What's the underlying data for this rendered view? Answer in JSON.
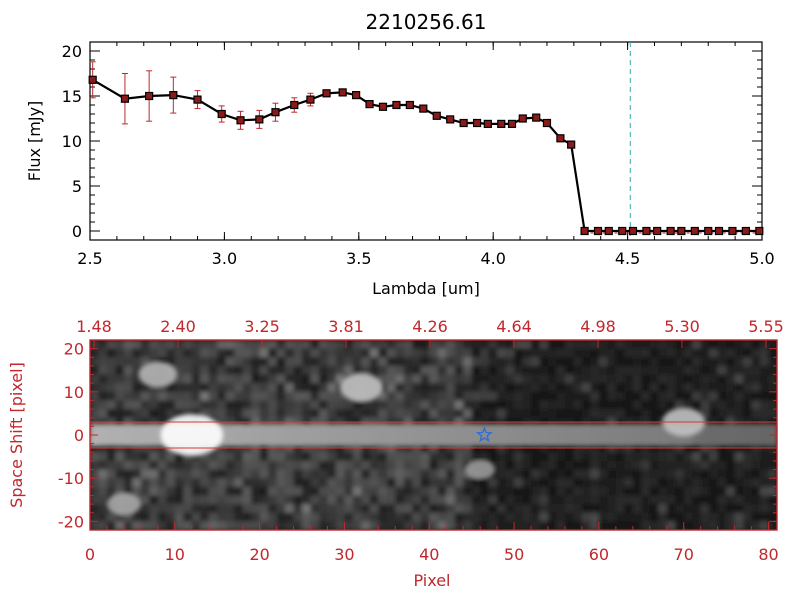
{
  "title": "2210256.61",
  "colors": {
    "axis_top": "#000000",
    "axis_bottom": "#c0282d",
    "line": "#000000",
    "marker": "#8b1a1a",
    "errorbar": "#c0282d",
    "cutoff_line": "#3aa7a7",
    "star": "#2f6fd6",
    "aperture": "#d33a3a"
  },
  "chart_data": [
    {
      "type": "line",
      "title": "2210256.61",
      "xlabel": "Lambda [um]",
      "ylabel": "Flux [mJy]",
      "xlim": [
        2.5,
        5.0
      ],
      "ylim": [
        -1,
        21
      ],
      "xticks": [
        "2.5",
        "3.0",
        "3.5",
        "4.0",
        "4.5",
        "5.0"
      ],
      "yticks": [
        "0",
        "5",
        "10",
        "15",
        "20"
      ],
      "cutoff_x": 4.51,
      "series": [
        {
          "x": [
            2.51,
            2.63,
            2.72,
            2.81,
            2.9,
            2.99,
            3.06,
            3.13,
            3.19,
            3.26,
            3.32,
            3.38,
            3.44,
            3.49,
            3.54,
            3.59,
            3.64,
            3.69,
            3.74,
            3.79,
            3.84,
            3.89,
            3.94,
            3.98,
            4.03,
            4.07,
            4.11,
            4.16,
            4.2,
            4.25,
            4.29,
            4.34,
            4.39,
            4.43,
            4.48,
            4.52,
            4.57,
            4.61,
            4.66,
            4.7,
            4.75,
            4.8,
            4.84,
            4.89,
            4.94,
            4.99
          ],
          "y": [
            16.8,
            14.7,
            15.0,
            15.1,
            14.6,
            13.0,
            12.3,
            12.4,
            13.2,
            14.0,
            14.6,
            15.3,
            15.4,
            15.1,
            14.1,
            13.8,
            14.0,
            14.0,
            13.6,
            12.8,
            12.4,
            12.0,
            12.0,
            11.9,
            11.9,
            11.9,
            12.5,
            12.6,
            12.0,
            10.3,
            9.6,
            0.0,
            0.0,
            0.0,
            0.0,
            0.0,
            0.0,
            0.0,
            0.0,
            0.0,
            0.0,
            0.0,
            0.0,
            0.0,
            0.0,
            0.0
          ],
          "yerr": [
            2.0,
            2.8,
            2.8,
            2.0,
            1.0,
            0.9,
            1.0,
            1.0,
            1.0,
            0.8,
            0.7,
            0.3,
            0.3,
            0.3,
            0.3,
            0.3,
            0.3,
            0.3,
            0.3,
            0.3,
            0.3,
            0.3,
            0.3,
            0.3,
            0.3,
            0.3,
            0.3,
            0.3,
            0.3,
            0.3,
            0.3,
            0.2,
            0.2,
            0.2,
            0.2,
            0.2,
            0.2,
            0.2,
            0.2,
            0.2,
            0.2,
            0.2,
            0.2,
            0.2,
            0.2,
            0.2
          ]
        }
      ]
    },
    {
      "type": "heatmap",
      "xlabel": "Pixel",
      "ylabel": "Space Shift [pixel]",
      "xlim": [
        0,
        81
      ],
      "ylim": [
        -22,
        22
      ],
      "xticks": [
        "0",
        "10",
        "20",
        "30",
        "40",
        "50",
        "60",
        "70",
        "80"
      ],
      "yticks": [
        "-20",
        "-10",
        "0",
        "10",
        "20"
      ],
      "top_ticks": [
        "1.48",
        "2.40",
        "3.25",
        "3.81",
        "4.26",
        "4.64",
        "4.98",
        "5.30",
        "5.55"
      ],
      "aperture_y": [
        -3,
        3
      ],
      "star": {
        "x": 46.5,
        "y": 0
      },
      "sources": [
        {
          "x": 12,
          "y": 0,
          "brightness": 1.0
        },
        {
          "x": 32,
          "y": 11,
          "brightness": 0.55
        },
        {
          "x": 8,
          "y": 14,
          "brightness": 0.45
        },
        {
          "x": 70,
          "y": 3,
          "brightness": 0.55
        },
        {
          "x": 46,
          "y": -8,
          "brightness": 0.25
        },
        {
          "x": 4,
          "y": -16,
          "brightness": 0.35
        }
      ]
    }
  ]
}
